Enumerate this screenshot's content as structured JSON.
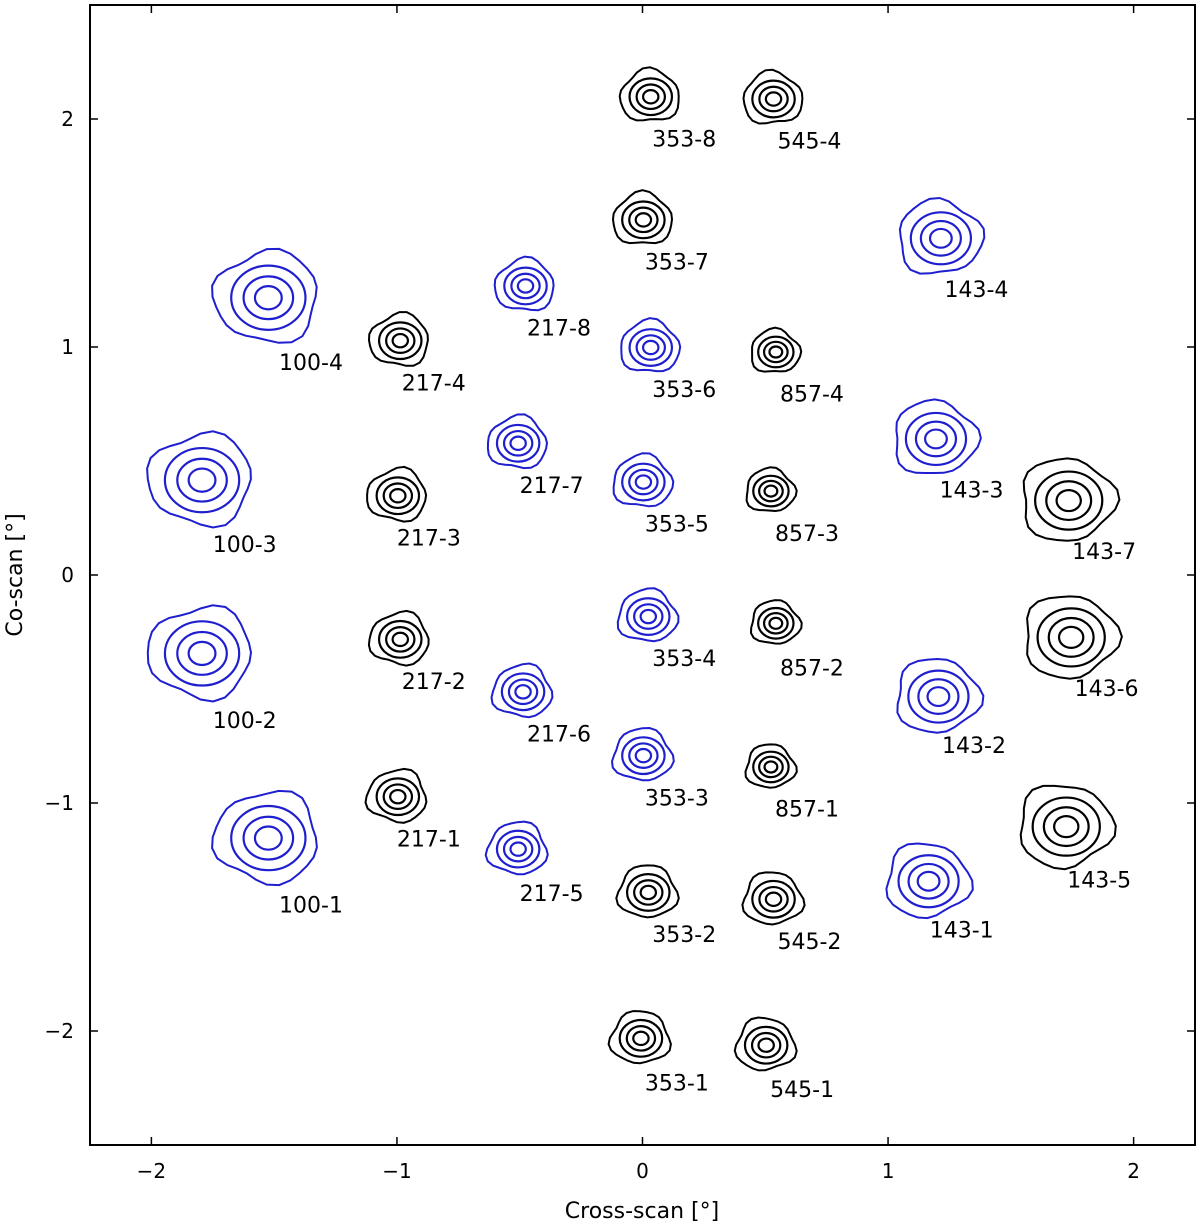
{
  "chart_data": {
    "type": "scatter",
    "title": "",
    "xlabel": "Cross-scan [°]",
    "ylabel": "Co-scan [°]",
    "xlim": [
      -2.25,
      2.25
    ],
    "ylim": [
      -2.5,
      2.5
    ],
    "xticks": [
      -2,
      -1,
      0,
      1,
      2
    ],
    "yticks": [
      -2,
      -1,
      0,
      1,
      2
    ],
    "xtick_labels": [
      "−2",
      "−1",
      "0",
      "1",
      "2"
    ],
    "ytick_labels": [
      "−2",
      "−1",
      "0",
      "1",
      "2"
    ],
    "colors": {
      "black": "#000000",
      "blue": "#1f1fcf"
    },
    "beams": [
      {
        "label": "100-1",
        "x": -1.53,
        "y": -1.15,
        "color": "blue",
        "r": 0.21,
        "lx": -1.35,
        "ly": -1.48
      },
      {
        "label": "100-2",
        "x": -1.8,
        "y": -0.34,
        "color": "blue",
        "r": 0.21,
        "lx": -1.62,
        "ly": -0.67
      },
      {
        "label": "100-3",
        "x": -1.8,
        "y": 0.42,
        "color": "blue",
        "r": 0.21,
        "lx": -1.62,
        "ly": 0.1
      },
      {
        "label": "100-4",
        "x": -1.53,
        "y": 1.22,
        "color": "blue",
        "r": 0.21,
        "lx": -1.35,
        "ly": 0.9
      },
      {
        "label": "217-1",
        "x": -1.0,
        "y": -0.97,
        "color": "black",
        "r": 0.12,
        "lx": -0.87,
        "ly": -1.19
      },
      {
        "label": "217-2",
        "x": -0.99,
        "y": -0.28,
        "color": "black",
        "r": 0.12,
        "lx": -0.85,
        "ly": -0.5
      },
      {
        "label": "217-3",
        "x": -1.0,
        "y": 0.35,
        "color": "black",
        "r": 0.12,
        "lx": -0.87,
        "ly": 0.13
      },
      {
        "label": "217-4",
        "x": -0.99,
        "y": 1.03,
        "color": "black",
        "r": 0.12,
        "lx": -0.85,
        "ly": 0.81
      },
      {
        "label": "217-5",
        "x": -0.51,
        "y": -1.2,
        "color": "blue",
        "r": 0.12,
        "lx": -0.37,
        "ly": -1.43
      },
      {
        "label": "217-6",
        "x": -0.49,
        "y": -0.51,
        "color": "blue",
        "r": 0.12,
        "lx": -0.34,
        "ly": -0.73
      },
      {
        "label": "217-7",
        "x": -0.51,
        "y": 0.58,
        "color": "blue",
        "r": 0.12,
        "lx": -0.37,
        "ly": 0.36
      },
      {
        "label": "217-8",
        "x": -0.48,
        "y": 1.27,
        "color": "blue",
        "r": 0.12,
        "lx": -0.34,
        "ly": 1.05
      },
      {
        "label": "353-1",
        "x": -0.01,
        "y": -2.03,
        "color": "black",
        "r": 0.12,
        "lx": 0.14,
        "ly": -2.26
      },
      {
        "label": "353-2",
        "x": 0.02,
        "y": -1.39,
        "color": "black",
        "r": 0.12,
        "lx": 0.17,
        "ly": -1.61
      },
      {
        "label": "353-3",
        "x": 0.0,
        "y": -0.79,
        "color": "blue",
        "r": 0.12,
        "lx": 0.14,
        "ly": -1.01
      },
      {
        "label": "353-4",
        "x": 0.02,
        "y": -0.18,
        "color": "blue",
        "r": 0.12,
        "lx": 0.17,
        "ly": -0.4
      },
      {
        "label": "353-5",
        "x": 0.0,
        "y": 0.41,
        "color": "blue",
        "r": 0.12,
        "lx": 0.14,
        "ly": 0.19
      },
      {
        "label": "353-6",
        "x": 0.03,
        "y": 1.0,
        "color": "blue",
        "r": 0.12,
        "lx": 0.17,
        "ly": 0.78
      },
      {
        "label": "353-7",
        "x": 0.0,
        "y": 1.56,
        "color": "black",
        "r": 0.12,
        "lx": 0.14,
        "ly": 1.34
      },
      {
        "label": "353-8",
        "x": 0.03,
        "y": 2.1,
        "color": "black",
        "r": 0.12,
        "lx": 0.17,
        "ly": 1.88
      },
      {
        "label": "545-1",
        "x": 0.5,
        "y": -2.06,
        "color": "black",
        "r": 0.12,
        "lx": 0.65,
        "ly": -2.29
      },
      {
        "label": "545-2",
        "x": 0.53,
        "y": -1.42,
        "color": "black",
        "r": 0.12,
        "lx": 0.68,
        "ly": -1.64
      },
      {
        "label": "545-4",
        "x": 0.53,
        "y": 2.09,
        "color": "black",
        "r": 0.12,
        "lx": 0.68,
        "ly": 1.87
      },
      {
        "label": "857-1",
        "x": 0.52,
        "y": -0.84,
        "color": "black",
        "r": 0.1,
        "lx": 0.67,
        "ly": -1.06
      },
      {
        "label": "857-2",
        "x": 0.54,
        "y": -0.21,
        "color": "black",
        "r": 0.1,
        "lx": 0.69,
        "ly": -0.44
      },
      {
        "label": "857-3",
        "x": 0.52,
        "y": 0.37,
        "color": "black",
        "r": 0.1,
        "lx": 0.67,
        "ly": 0.15
      },
      {
        "label": "857-4",
        "x": 0.54,
        "y": 0.98,
        "color": "black",
        "r": 0.1,
        "lx": 0.69,
        "ly": 0.76
      },
      {
        "label": "143-1",
        "x": 1.16,
        "y": -1.34,
        "color": "blue",
        "r": 0.17,
        "lx": 1.3,
        "ly": -1.59
      },
      {
        "label": "143-2",
        "x": 1.2,
        "y": -0.53,
        "color": "blue",
        "r": 0.17,
        "lx": 1.35,
        "ly": -0.78
      },
      {
        "label": "143-3",
        "x": 1.19,
        "y": 0.6,
        "color": "blue",
        "r": 0.17,
        "lx": 1.34,
        "ly": 0.34
      },
      {
        "label": "143-4",
        "x": 1.21,
        "y": 1.48,
        "color": "blue",
        "r": 0.17,
        "lx": 1.36,
        "ly": 1.22
      },
      {
        "label": "143-5",
        "x": 1.72,
        "y": -1.1,
        "color": "black",
        "r": 0.19,
        "lx": 1.86,
        "ly": -1.37
      },
      {
        "label": "143-6",
        "x": 1.74,
        "y": -0.27,
        "color": "black",
        "r": 0.19,
        "lx": 1.89,
        "ly": -0.53
      },
      {
        "label": "143-7",
        "x": 1.73,
        "y": 0.33,
        "color": "black",
        "r": 0.19,
        "lx": 1.88,
        "ly": 0.07
      }
    ]
  }
}
